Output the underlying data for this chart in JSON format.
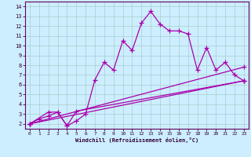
{
  "xlabel": "Windchill (Refroidissement éolien,°C)",
  "bg_color": "#cceeff",
  "grid_color": "#aacccc",
  "line_color": "#aa00aa",
  "xlim": [
    -0.5,
    23.5
  ],
  "ylim": [
    1.5,
    14.5
  ],
  "xticks": [
    0,
    1,
    2,
    3,
    4,
    5,
    6,
    7,
    8,
    9,
    10,
    11,
    12,
    13,
    14,
    15,
    16,
    17,
    18,
    19,
    20,
    21,
    22,
    23
  ],
  "yticks": [
    2,
    3,
    4,
    5,
    6,
    7,
    8,
    9,
    10,
    11,
    12,
    13,
    14
  ],
  "lines": [
    {
      "x": [
        0,
        1,
        2,
        3,
        4,
        5,
        6,
        7,
        8,
        9,
        10,
        11,
        12,
        13,
        14,
        15,
        16,
        17,
        18,
        19,
        20,
        21,
        22,
        23
      ],
      "y": [
        2.0,
        2.5,
        2.8,
        3.2,
        1.8,
        2.3,
        3.0,
        6.5,
        8.3,
        7.5,
        10.5,
        9.5,
        12.3,
        13.5,
        12.2,
        11.5,
        11.5,
        11.2,
        7.5,
        9.8,
        7.5,
        8.3,
        7.0,
        6.4
      ]
    },
    {
      "comment": "triangle dip curve 0->3->4->5->23",
      "x": [
        0,
        2,
        3,
        4,
        5,
        23
      ],
      "y": [
        2.0,
        3.2,
        3.2,
        1.8,
        3.3,
        6.4
      ]
    },
    {
      "x": [
        0,
        23
      ],
      "y": [
        2.0,
        7.8
      ]
    },
    {
      "x": [
        0,
        23
      ],
      "y": [
        2.0,
        6.4
      ]
    }
  ]
}
